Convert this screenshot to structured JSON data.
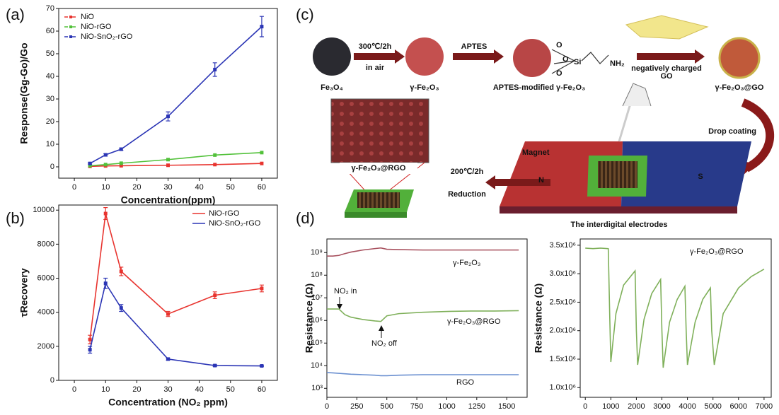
{
  "panel_labels": [
    "(a)",
    "(b)",
    "(c)",
    "(d)"
  ],
  "chart_data": [
    {
      "type": "line",
      "markers": true,
      "legend": "upper left",
      "xlabel": "Concentration(ppm)",
      "ylabel": "Response(Gg-Go)/Go",
      "x": [
        5,
        10,
        15,
        30,
        45,
        60
      ],
      "xlim": [
        -5,
        65
      ],
      "xticks": [
        0,
        10,
        20,
        30,
        40,
        50,
        60
      ],
      "ylim": [
        -5,
        70
      ],
      "yticks": [
        0,
        10,
        20,
        30,
        40,
        50,
        60,
        70
      ],
      "series": [
        {
          "name": "NiO",
          "color": "#e8342f",
          "values": [
            0.2,
            0.4,
            0.5,
            0.7,
            1.0,
            1.5
          ]
        },
        {
          "name": "NiO-rGO",
          "color": "#52c13a",
          "values": [
            0.5,
            1.0,
            1.6,
            3.2,
            5.2,
            6.3
          ]
        },
        {
          "name": "NiO-SnO₂-rGO",
          "color": "#2b35b5",
          "values": [
            1.5,
            5.3,
            7.8,
            22.3,
            43,
            62
          ],
          "errors": [
            0.3,
            0.5,
            0.5,
            2,
            3,
            4.5
          ]
        }
      ]
    },
    {
      "type": "line",
      "markers": true,
      "legend": "upper right",
      "xlabel": "Concentration (NO₂ ppm)",
      "ylabel": "τRecovery",
      "x": [
        5,
        10,
        15,
        30,
        45,
        60
      ],
      "xlim": [
        -5,
        65
      ],
      "xticks": [
        0,
        10,
        20,
        30,
        40,
        50,
        60
      ],
      "ylim": [
        0,
        10300
      ],
      "yticks": [
        0,
        2000,
        4000,
        6000,
        8000,
        10000
      ],
      "series": [
        {
          "name": "NiO-rGO",
          "color": "#e8342f",
          "values": [
            2400,
            9800,
            6400,
            3900,
            5000,
            5400
          ],
          "errors": [
            250,
            350,
            250,
            150,
            200,
            200
          ]
        },
        {
          "name": "NiO-SnO₂-rGO",
          "color": "#2b35b5",
          "values": [
            1800,
            5700,
            4250,
            1250,
            870,
            850
          ],
          "errors": [
            200,
            300,
            200,
            60,
            50,
            30
          ]
        }
      ]
    },
    {
      "type": "line",
      "ylog": true,
      "legend": "inline",
      "xlabel": "Time (s)",
      "ylabel": "Resistance (Ω)",
      "x": [
        0,
        50,
        100,
        150,
        200,
        300,
        400,
        450,
        500,
        600,
        800,
        1000,
        1200,
        1400,
        1600
      ],
      "xlim": [
        0,
        1670
      ],
      "xticks": [
        0,
        250,
        500,
        750,
        1000,
        1250,
        1500
      ],
      "ylim": [
        400,
        4000000000
      ],
      "yticks": [
        {
          "value": 1000,
          "label": "10³"
        },
        {
          "value": 10000,
          "label": "10⁴"
        },
        {
          "value": 100000,
          "label": "10⁵"
        },
        {
          "value": 1000000,
          "label": "10⁶"
        },
        {
          "value": 10000000,
          "label": "10⁷"
        },
        {
          "value": 100000000,
          "label": "10⁸"
        },
        {
          "value": 1000000000,
          "label": "10⁹"
        }
      ],
      "annotations": [
        "NO₂ in",
        "NO₂ off"
      ],
      "series": [
        {
          "name": "γ-Fe₂O₃",
          "color": "#a8505e",
          "values": [
            700000000,
            700000000,
            750000000,
            900000000,
            1050000000,
            1300000000,
            1500000000,
            1600000000,
            1400000000,
            1350000000,
            1300000000,
            1300000000,
            1300000000,
            1300000000,
            1300000000
          ]
        },
        {
          "name": "γ-Fe₂O₃@RGO",
          "color": "#7fb05a",
          "values": [
            3200000,
            3200000,
            3200000,
            1800000,
            1400000,
            1100000,
            950000,
            900000,
            1600000,
            2000000,
            2300000,
            2500000,
            2600000,
            2600000,
            2700000
          ]
        },
        {
          "name": "RGO",
          "color": "#6a8fd0",
          "values": [
            5000,
            4800,
            4600,
            4400,
            4200,
            4000,
            3800,
            3600,
            3600,
            3800,
            4000,
            4000,
            4000,
            4000,
            4000
          ]
        }
      ]
    },
    {
      "type": "line",
      "legend": "inline",
      "xlabel": "Time (s)",
      "ylabel": "Resistance (Ω)",
      "x": [
        0,
        300,
        600,
        900,
        960,
        1000,
        1200,
        1500,
        1950,
        2000,
        2050,
        2300,
        2600,
        2950,
        3000,
        3050,
        3300,
        3600,
        3900,
        3950,
        4000,
        4300,
        4600,
        4900,
        4950,
        5050,
        5400,
        6000,
        6500,
        7000
      ],
      "xlim": [
        -200,
        7280
      ],
      "xticks": [
        0,
        1000,
        2000,
        3000,
        4000,
        5000,
        6000,
        7000
      ],
      "ylim": [
        830000,
        3610000
      ],
      "yticks": [
        {
          "value": 1000000,
          "label": "1.0x10⁶"
        },
        {
          "value": 1500000,
          "label": "1.5x10⁶"
        },
        {
          "value": 2000000,
          "label": "2.0x10⁶"
        },
        {
          "value": 2500000,
          "label": "2.5x10⁶"
        },
        {
          "value": 3000000,
          "label": "3.0x10⁶"
        },
        {
          "value": 3500000,
          "label": "3.5x10⁶"
        }
      ],
      "series": [
        {
          "name": "γ-Fe₂O₃@RGO",
          "color": "#7fb05a",
          "values": [
            3450000,
            3440000,
            3450000,
            3440000,
            2200000,
            1450000,
            2300000,
            2800000,
            3050000,
            2000000,
            1400000,
            2200000,
            2650000,
            2900000,
            2000000,
            1350000,
            2150000,
            2550000,
            2780000,
            2000000,
            1400000,
            2150000,
            2550000,
            2750000,
            2000000,
            1400000,
            2300000,
            2750000,
            2950000,
            3080000
          ]
        }
      ]
    }
  ],
  "diagram": {
    "labels": [
      "Fe₃O₄",
      "300℃/2h",
      "in air",
      "γ-Fe₂O₃",
      "APTES",
      "APTES-modified γ-Fe₂O₃",
      "O",
      "O",
      "O",
      "Si",
      "NH₂",
      "negatively charged",
      "GO",
      "γ-Fe₂O₃@GO",
      "Drop coating",
      "Magnet",
      "N",
      "S",
      "The interdigital electrodes",
      "200℃/2h",
      "Reduction",
      "γ-Fe₂O₃@RGO"
    ]
  }
}
